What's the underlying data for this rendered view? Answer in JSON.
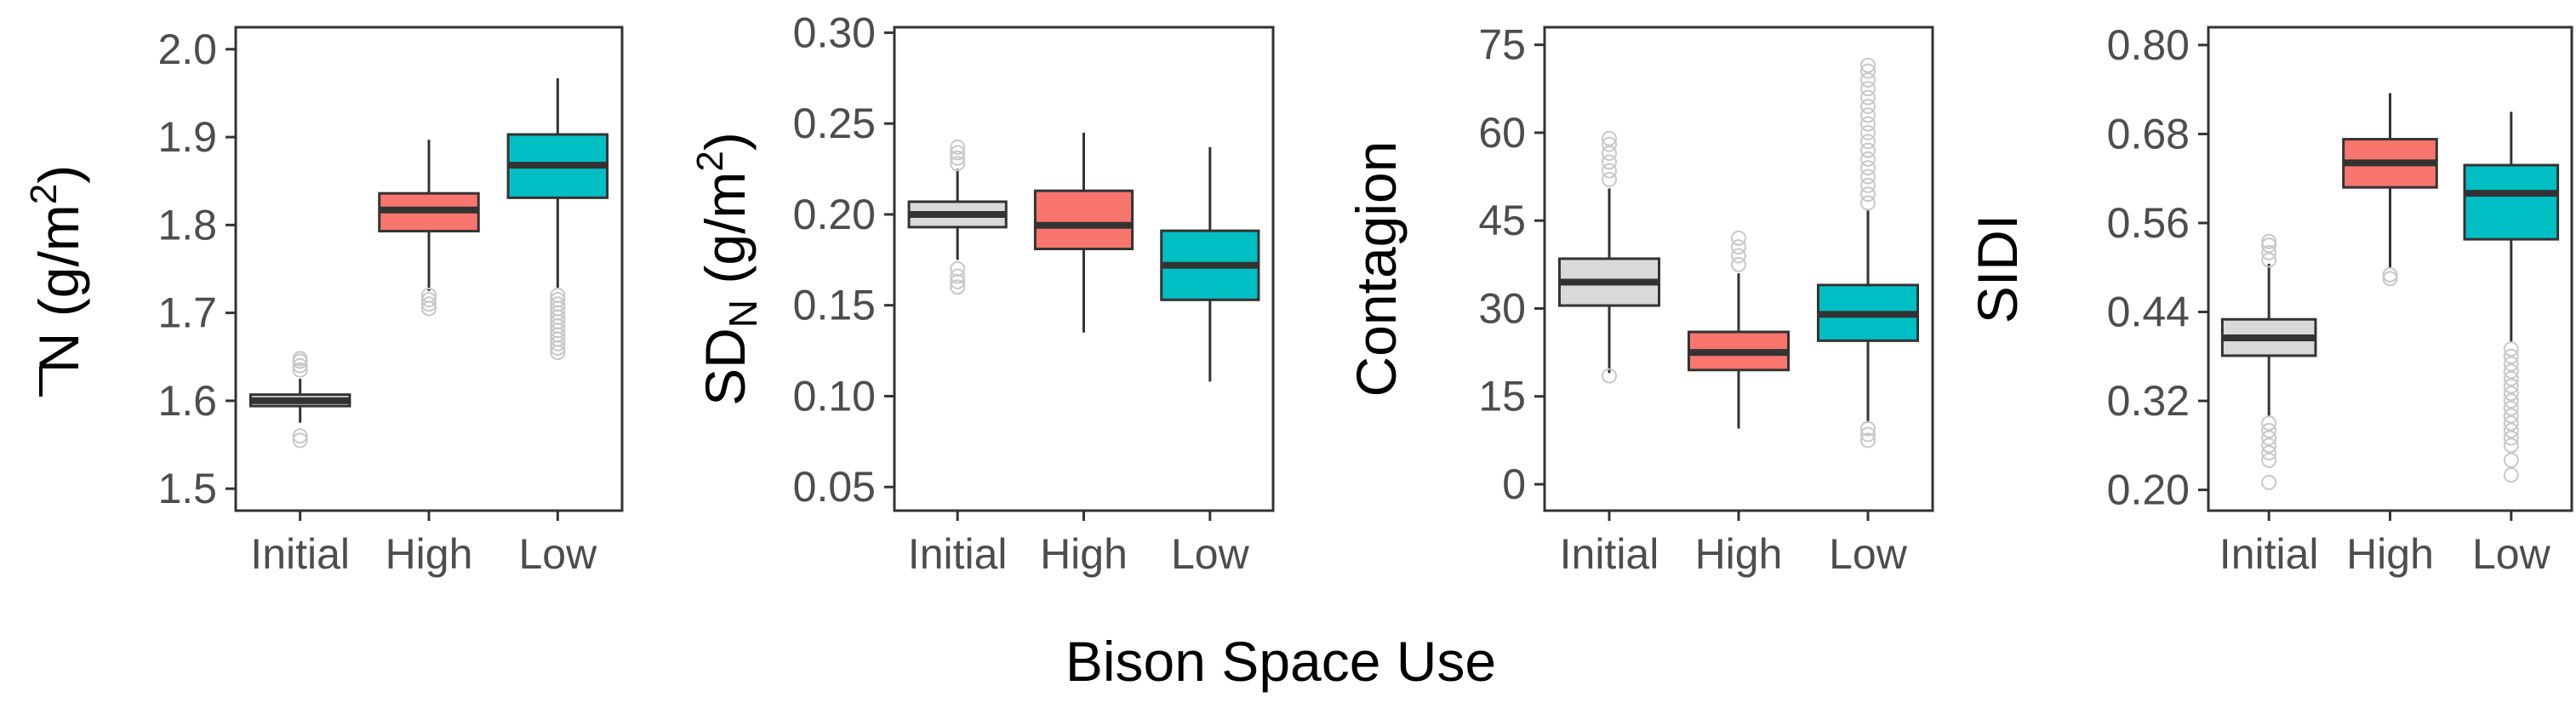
{
  "xlabel": "Bison Space Use",
  "colors": {
    "Initial": "#d9d9d9",
    "High": "#f8766d",
    "Low": "#00bfc4"
  },
  "chart_data": [
    {
      "type": "box",
      "ylabel_text": "N",
      "ylabel_unit": "(g/m",
      "ylabel_sup": "2",
      "ylabel_close": ")",
      "ylim": [
        1.475,
        2.025
      ],
      "yticks": [
        1.5,
        1.6,
        1.7,
        1.8,
        1.9,
        2.0
      ],
      "ytick_labels": [
        "1.5",
        "1.6",
        "1.7",
        "1.8",
        "1.9",
        "2.0"
      ],
      "categories": [
        "Initial",
        "High",
        "Low"
      ],
      "boxes": [
        {
          "name": "Initial",
          "q1": 1.594,
          "median": 1.6,
          "q3": 1.607,
          "whisker_low": 1.575,
          "whisker_high": 1.625,
          "outliers": [
            1.555,
            1.56,
            1.635,
            1.64,
            1.645,
            1.648
          ]
        },
        {
          "name": "High",
          "q1": 1.793,
          "median": 1.817,
          "q3": 1.836,
          "whisker_low": 1.725,
          "whisker_high": 1.897,
          "outliers": [
            1.705,
            1.71,
            1.715,
            1.72
          ]
        },
        {
          "name": "Low",
          "q1": 1.831,
          "median": 1.868,
          "q3": 1.903,
          "whisker_low": 1.727,
          "whisker_high": 1.967,
          "outliers": [
            1.655,
            1.66,
            1.665,
            1.67,
            1.675,
            1.68,
            1.685,
            1.69,
            1.695,
            1.7,
            1.705,
            1.71,
            1.715,
            1.72
          ]
        }
      ]
    },
    {
      "type": "box",
      "ylabel_text": "SD",
      "ylabel_sub": "N",
      "ylabel_unit": "(g/m",
      "ylabel_sup": "2",
      "ylabel_close": ")",
      "ylim": [
        0.037,
        0.303
      ],
      "yticks": [
        0.05,
        0.1,
        0.15,
        0.2,
        0.25,
        0.3
      ],
      "ytick_labels": [
        "0.05",
        "0.10",
        "0.15",
        "0.20",
        "0.25",
        "0.30"
      ],
      "categories": [
        "Initial",
        "High",
        "Low"
      ],
      "boxes": [
        {
          "name": "Initial",
          "q1": 0.193,
          "median": 0.2,
          "q3": 0.207,
          "whisker_low": 0.175,
          "whisker_high": 0.225,
          "outliers": [
            0.16,
            0.163,
            0.166,
            0.17,
            0.228,
            0.231,
            0.234,
            0.237
          ]
        },
        {
          "name": "High",
          "q1": 0.181,
          "median": 0.194,
          "q3": 0.213,
          "whisker_low": 0.135,
          "whisker_high": 0.245,
          "outliers": []
        },
        {
          "name": "Low",
          "q1": 0.153,
          "median": 0.172,
          "q3": 0.191,
          "whisker_low": 0.108,
          "whisker_high": 0.237,
          "outliers": []
        }
      ]
    },
    {
      "type": "box",
      "ylabel_text": "Contagion",
      "ylim": [
        -4.5,
        78
      ],
      "yticks": [
        0,
        15,
        30,
        45,
        60,
        75
      ],
      "ytick_labels": [
        "0",
        "15",
        "30",
        "45",
        "60",
        "75"
      ],
      "categories": [
        "Initial",
        "High",
        "Low"
      ],
      "boxes": [
        {
          "name": "Initial",
          "q1": 30.5,
          "median": 34.5,
          "q3": 38.5,
          "whisker_low": 19.0,
          "whisker_high": 50.5,
          "outliers": [
            18.5,
            52,
            53.5,
            55,
            56.5,
            58,
            59
          ]
        },
        {
          "name": "High",
          "q1": 19.5,
          "median": 22.5,
          "q3": 26.0,
          "whisker_low": 9.5,
          "whisker_high": 36.0,
          "outliers": [
            37.5,
            39,
            40.5,
            42
          ]
        },
        {
          "name": "Low",
          "q1": 24.5,
          "median": 29.0,
          "q3": 34.0,
          "whisker_low": 10.5,
          "whisker_high": 47.0,
          "outliers": [
            7.5,
            8.5,
            9.5,
            48,
            49.5,
            51,
            52.5,
            54,
            55.5,
            57,
            58.5,
            60,
            61.5,
            63,
            64.5,
            66,
            67.5,
            69,
            70.5,
            71.5
          ]
        }
      ]
    },
    {
      "type": "box",
      "ylabel_text": "SIDI",
      "ylabel_sub": "",
      "ylim": [
        0.172,
        0.824
      ],
      "yticks": [
        0.2,
        0.32,
        0.44,
        0.56,
        0.68,
        0.8
      ],
      "ytick_labels": [
        "0.20",
        "0.32",
        "0.44",
        "0.56",
        "0.68",
        "0.80"
      ],
      "categories": [
        "Initial",
        "High",
        "Low"
      ],
      "boxes": [
        {
          "name": "Initial",
          "q1": 0.381,
          "median": 0.405,
          "q3": 0.43,
          "whisker_low": 0.3,
          "whisker_high": 0.505,
          "outliers": [
            0.21,
            0.24,
            0.25,
            0.26,
            0.27,
            0.28,
            0.29,
            0.51,
            0.52,
            0.53,
            0.535
          ]
        },
        {
          "name": "High",
          "q1": 0.608,
          "median": 0.641,
          "q3": 0.673,
          "whisker_low": 0.5,
          "whisker_high": 0.735,
          "outliers": [
            0.485,
            0.49
          ]
        },
        {
          "name": "Low",
          "q1": 0.538,
          "median": 0.6,
          "q3": 0.638,
          "whisker_low": 0.4,
          "whisker_high": 0.71,
          "outliers": [
            0.22,
            0.24,
            0.26,
            0.27,
            0.28,
            0.29,
            0.3,
            0.31,
            0.32,
            0.33,
            0.34,
            0.35,
            0.36,
            0.37,
            0.38,
            0.39
          ]
        }
      ]
    }
  ]
}
